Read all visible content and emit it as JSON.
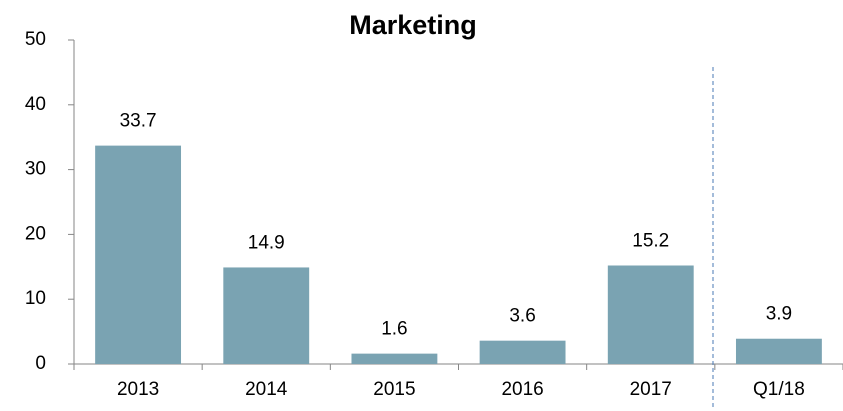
{
  "chart_data": {
    "type": "bar",
    "title": "Marketing",
    "categories": [
      "2013",
      "2014",
      "2015",
      "2016",
      "2017",
      "Q1/18"
    ],
    "values": [
      33.7,
      14.9,
      1.6,
      3.6,
      15.2,
      3.9
    ],
    "color": "#7aa3b2",
    "ylim": [
      0,
      50
    ],
    "yticks": [
      0,
      10,
      20,
      30,
      40,
      50
    ]
  }
}
